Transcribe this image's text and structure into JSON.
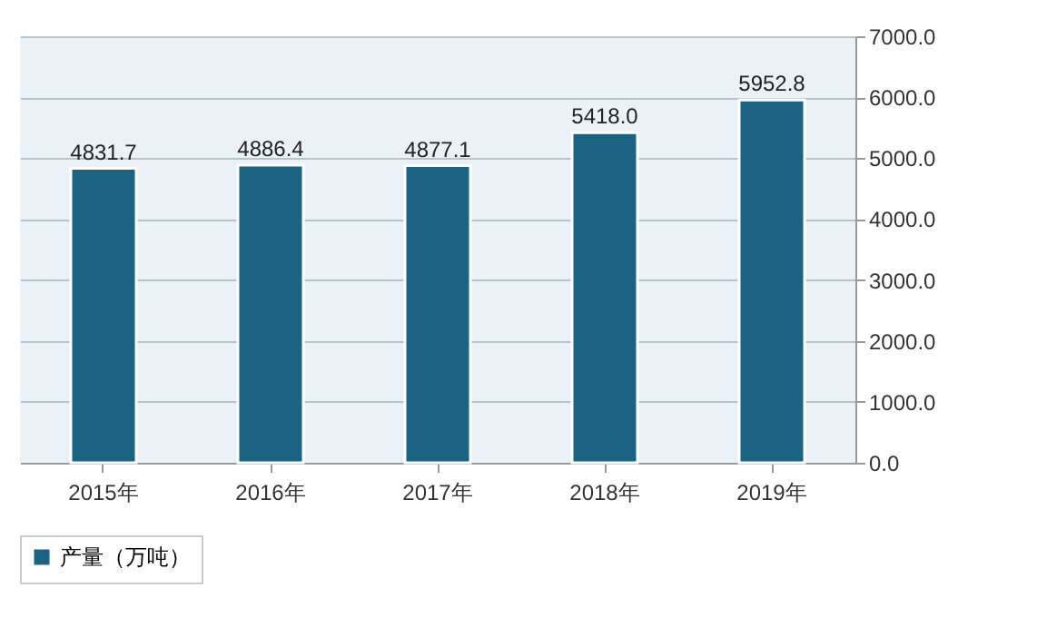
{
  "chart_data": {
    "type": "bar",
    "categories": [
      "2015年",
      "2016年",
      "2017年",
      "2018年",
      "2019年"
    ],
    "series": [
      {
        "name": "产量（万吨）",
        "color": "#1b6382",
        "values": [
          4831.7,
          4886.4,
          4877.1,
          5418.0,
          5952.8
        ]
      }
    ],
    "value_labels": [
      "4831.7",
      "4886.4",
      "4877.1",
      "5418.0",
      "5952.8"
    ],
    "ylim": [
      0,
      7000
    ],
    "yticks": [
      {
        "value": 0,
        "label": "0.0"
      },
      {
        "value": 1000,
        "label": "1000.0"
      },
      {
        "value": 2000,
        "label": "2000.0"
      },
      {
        "value": 3000,
        "label": "3000.0"
      },
      {
        "value": 4000,
        "label": "4000.0"
      },
      {
        "value": 5000,
        "label": "5000.0"
      },
      {
        "value": 6000,
        "label": "6000.0"
      },
      {
        "value": 7000,
        "label": "7000.0"
      }
    ],
    "grid": "y",
    "legend": "bottom"
  }
}
